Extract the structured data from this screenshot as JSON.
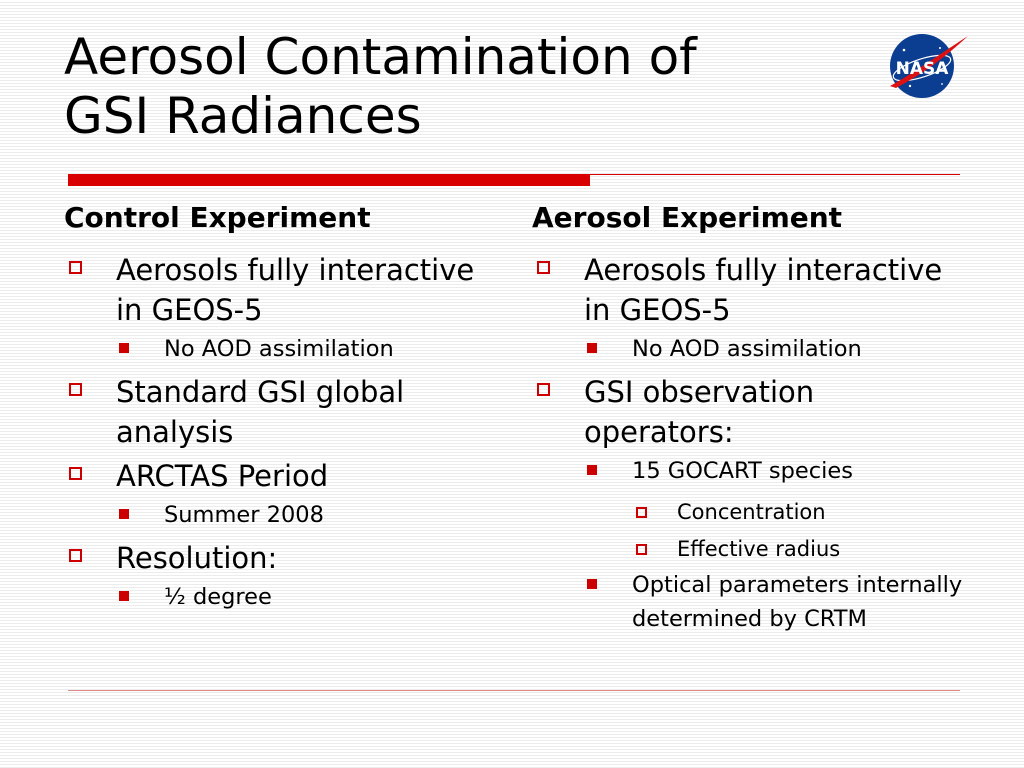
{
  "slide": {
    "title_line1": "Aerosol Contamination of",
    "title_line2": "GSI Radiances",
    "logo_icon": "nasa-meatball-logo",
    "logo_text": "NASA",
    "accent_color": "#d80000"
  },
  "left": {
    "heading": "Control Experiment",
    "items": [
      {
        "text": "Aerosols fully interactive in GEOS-5",
        "sub": [
          "No AOD assimilation"
        ]
      },
      {
        "text": "Standard GSI global analysis",
        "sub": []
      },
      {
        "text": "ARCTAS Period",
        "sub": [
          "Summer 2008"
        ]
      },
      {
        "text": "Resolution:",
        "sub": [
          "½ degree"
        ]
      }
    ]
  },
  "right": {
    "heading": "Aerosol Experiment",
    "items": [
      {
        "text": "Aerosols fully interactive in GEOS-5",
        "sub": [
          "No AOD assimilation"
        ]
      },
      {
        "text": "GSI observation operators:",
        "sub": [
          "15 GOCART species",
          "Optical parameters internally determined by CRTM"
        ],
        "subsub": [
          "Concentration",
          "Effective radius"
        ]
      }
    ]
  }
}
